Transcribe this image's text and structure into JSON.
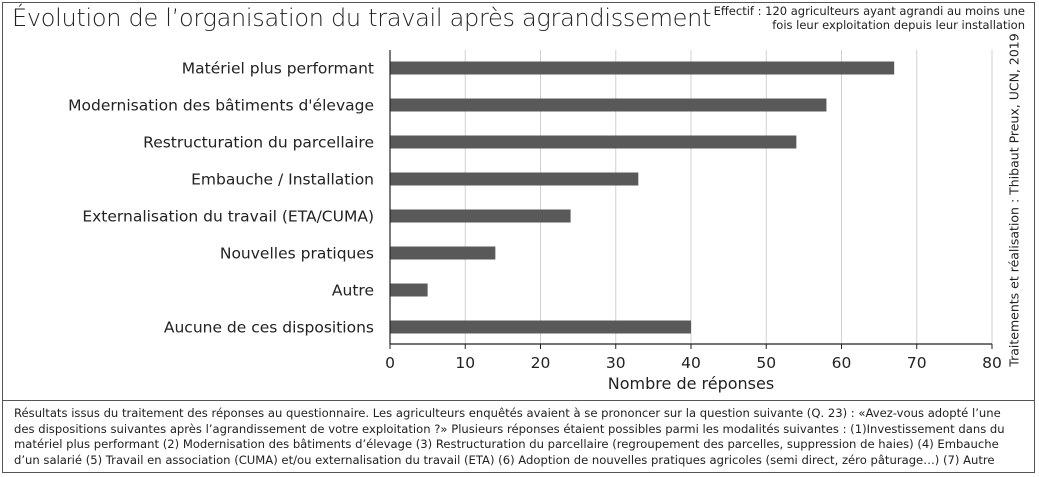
{
  "header": {
    "title": "Évolution de l’organisation du travail après agrandissement",
    "effectif": "Effectif : 120 agriculteurs ayant agrandi au moins une fois leur exploitation depuis leur installation"
  },
  "credit": "Traitements et réalisation : Thibaut Preux, UCN, 2019",
  "footnote": "Résultats issus du traitement des réponses au questionnaire. Les agriculteurs enquêtés avaient à se prononcer sur la question suivante (Q. 23) : «Avez-vous adopté l’une des dispositions suivantes après l’agrandissement de votre exploitation ?» Plusieurs réponses étaient possibles parmi les modalités suivantes : (1)Investissement dans du matériel plus performant (2) Modernisation des bâtiments d’élevage (3) Restructuration du parcellaire (regroupement des parcelles, suppression de haies) (4) Embauche d’un salarié (5) Travail en association (CUMA) et/ou externalisation du travail (ETA) (6) Adoption de nouvelles pratiques agricoles (semi direct, zéro pâturage…) (7) Autre",
  "colors": {
    "bar": "#595959",
    "grid": "#d0d0d0",
    "axis": "#222222",
    "frame": "#555555"
  },
  "chart_data": {
    "type": "bar",
    "orientation": "horizontal",
    "title": "Évolution de l’organisation du travail après agrandissement",
    "xlabel": "Nombre de réponses",
    "ylabel": "",
    "categories": [
      "Matériel plus performant",
      "Modernisation des bâtiments d'élevage",
      "Restructuration du parcellaire",
      "Embauche / Installation",
      "Externalisation du travail (ETA/CUMA)",
      "Nouvelles pratiques",
      "Autre",
      "Aucune de ces dispositions"
    ],
    "values": [
      67,
      58,
      54,
      33,
      24,
      14,
      5,
      40
    ],
    "xlim": [
      0,
      80
    ],
    "xticks": [
      "0",
      "10",
      "20",
      "30",
      "40",
      "50",
      "60",
      "70",
      "80"
    ],
    "grid": "vertical gridlines",
    "legend": "none"
  }
}
